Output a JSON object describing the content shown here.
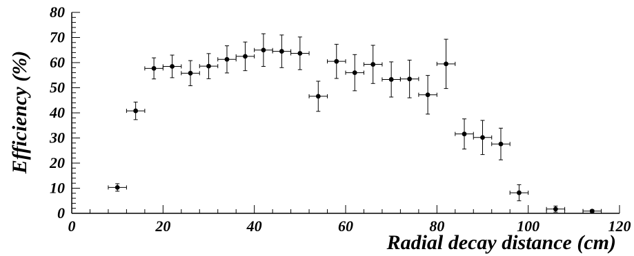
{
  "chart_data": {
    "type": "scatter",
    "title": "",
    "xlabel": "Radial decay distance (cm)",
    "ylabel": "Efficiency (%)",
    "xlim": [
      0,
      120
    ],
    "ylim": [
      0,
      80
    ],
    "x_ticks": [
      "0",
      "20",
      "40",
      "60",
      "80",
      "100",
      "120"
    ],
    "y_ticks": [
      "0",
      "10",
      "20",
      "30",
      "40",
      "50",
      "60",
      "70",
      "80"
    ],
    "grid": false,
    "legend": "none",
    "marker_color": "#000000",
    "series": [
      {
        "x": [
          10,
          14,
          18,
          22,
          26,
          30,
          34,
          38,
          42,
          46,
          50,
          54,
          58,
          62,
          66,
          70,
          74,
          78,
          82,
          86,
          90,
          94,
          98,
          106,
          114
        ],
        "y": [
          10.3,
          40.8,
          57.7,
          58.5,
          55.8,
          58.6,
          61.3,
          62.5,
          65.0,
          64.5,
          63.7,
          46.6,
          60.5,
          56.0,
          59.3,
          53.3,
          53.5,
          47.2,
          59.5,
          31.6,
          30.2,
          27.6,
          8.2,
          1.7,
          0.9
        ],
        "x_err": [
          2,
          2,
          2,
          2,
          2,
          2,
          2,
          2,
          2,
          2,
          2,
          2,
          2,
          2,
          2,
          2,
          2,
          2,
          2,
          2,
          2,
          2,
          2,
          2,
          2
        ],
        "y_err": [
          1.5,
          3.5,
          4.2,
          4.5,
          5.0,
          5.0,
          5.4,
          5.7,
          6.5,
          6.5,
          6.5,
          6.0,
          6.8,
          7.2,
          7.6,
          7.0,
          7.5,
          7.7,
          9.8,
          6.0,
          6.8,
          6.3,
          3.2,
          1.2,
          0.5
        ]
      }
    ]
  }
}
